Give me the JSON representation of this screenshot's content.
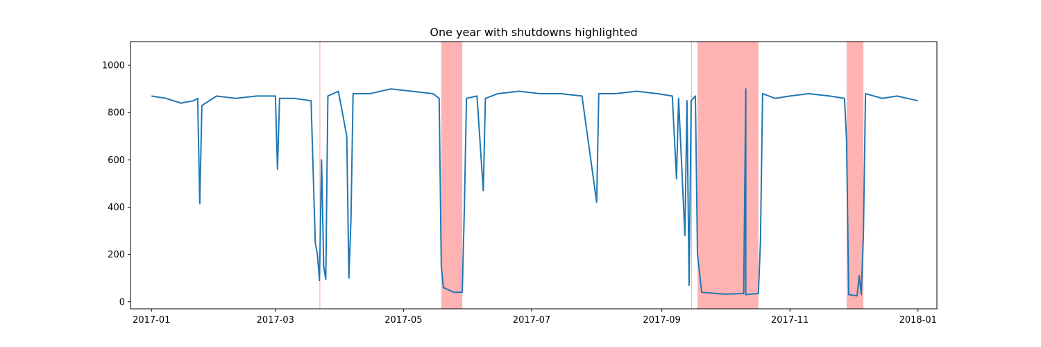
{
  "chart_data": {
    "type": "line",
    "title": "One year with shutdowns highlighted",
    "xlabel": "",
    "ylabel": "",
    "x_range": [
      "2016-12-22",
      "2018-01-10"
    ],
    "ylim": [
      -30,
      1100
    ],
    "grid": false,
    "legend": "none",
    "x_ticks": [
      {
        "date": "2017-01-01",
        "label": "2017-01"
      },
      {
        "date": "2017-03-01",
        "label": "2017-03"
      },
      {
        "date": "2017-05-01",
        "label": "2017-05"
      },
      {
        "date": "2017-07-01",
        "label": "2017-07"
      },
      {
        "date": "2017-09-01",
        "label": "2017-09"
      },
      {
        "date": "2017-11-01",
        "label": "2017-11"
      },
      {
        "date": "2018-01-01",
        "label": "2018-01"
      }
    ],
    "y_ticks": [
      0,
      200,
      400,
      600,
      800,
      1000
    ],
    "colors": {
      "line": "#1f77b4",
      "shutdown": "#ff0000",
      "shutdown_opacity": 0.3
    },
    "shutdowns": [
      {
        "start": "2017-03-22",
        "end": "2017-03-22"
      },
      {
        "start": "2017-05-19",
        "end": "2017-05-29"
      },
      {
        "start": "2017-09-15",
        "end": "2017-09-15"
      },
      {
        "start": "2017-09-18",
        "end": "2017-10-11"
      },
      {
        "start": "2017-10-11",
        "end": "2017-10-17"
      },
      {
        "start": "2017-11-28",
        "end": "2017-12-06"
      }
    ],
    "series": [
      {
        "values": [
          [
            "2017-01-01",
            870
          ],
          [
            "2017-01-08",
            860
          ],
          [
            "2017-01-15",
            840
          ],
          [
            "2017-01-21",
            850
          ],
          [
            "2017-01-23",
            860
          ],
          [
            "2017-01-24",
            415
          ],
          [
            "2017-01-25",
            830
          ],
          [
            "2017-02-01",
            870
          ],
          [
            "2017-02-10",
            860
          ],
          [
            "2017-02-20",
            870
          ],
          [
            "2017-03-01",
            870
          ],
          [
            "2017-03-02",
            560
          ],
          [
            "2017-03-03",
            860
          ],
          [
            "2017-03-10",
            860
          ],
          [
            "2017-03-18",
            850
          ],
          [
            "2017-03-20",
            250
          ],
          [
            "2017-03-21",
            200
          ],
          [
            "2017-03-22",
            90
          ],
          [
            "2017-03-23",
            600
          ],
          [
            "2017-03-24",
            150
          ],
          [
            "2017-03-25",
            95
          ],
          [
            "2017-03-26",
            870
          ],
          [
            "2017-03-31",
            890
          ],
          [
            "2017-04-04",
            700
          ],
          [
            "2017-04-05",
            100
          ],
          [
            "2017-04-06",
            350
          ],
          [
            "2017-04-07",
            880
          ],
          [
            "2017-04-15",
            880
          ],
          [
            "2017-04-25",
            900
          ],
          [
            "2017-05-05",
            890
          ],
          [
            "2017-05-15",
            880
          ],
          [
            "2017-05-18",
            860
          ],
          [
            "2017-05-19",
            150
          ],
          [
            "2017-05-20",
            60
          ],
          [
            "2017-05-25",
            40
          ],
          [
            "2017-05-29",
            40
          ],
          [
            "2017-05-30",
            400
          ],
          [
            "2017-05-31",
            860
          ],
          [
            "2017-06-05",
            870
          ],
          [
            "2017-06-08",
            470
          ],
          [
            "2017-06-09",
            860
          ],
          [
            "2017-06-15",
            880
          ],
          [
            "2017-06-25",
            890
          ],
          [
            "2017-07-05",
            880
          ],
          [
            "2017-07-15",
            880
          ],
          [
            "2017-07-25",
            870
          ],
          [
            "2017-08-01",
            420
          ],
          [
            "2017-08-02",
            880
          ],
          [
            "2017-08-10",
            880
          ],
          [
            "2017-08-20",
            890
          ],
          [
            "2017-08-30",
            880
          ],
          [
            "2017-09-06",
            870
          ],
          [
            "2017-09-08",
            520
          ],
          [
            "2017-09-09",
            860
          ],
          [
            "2017-09-12",
            280
          ],
          [
            "2017-09-13",
            850
          ],
          [
            "2017-09-14",
            70
          ],
          [
            "2017-09-15",
            850
          ],
          [
            "2017-09-17",
            870
          ],
          [
            "2017-09-18",
            200
          ],
          [
            "2017-09-20",
            40
          ],
          [
            "2017-10-01",
            32
          ],
          [
            "2017-10-10",
            35
          ],
          [
            "2017-10-11",
            900
          ],
          [
            "2017-10-11",
            30
          ],
          [
            "2017-10-17",
            35
          ],
          [
            "2017-10-18",
            260
          ],
          [
            "2017-10-19",
            880
          ],
          [
            "2017-10-25",
            860
          ],
          [
            "2017-11-01",
            870
          ],
          [
            "2017-11-10",
            880
          ],
          [
            "2017-11-20",
            870
          ],
          [
            "2017-11-27",
            860
          ],
          [
            "2017-11-28",
            680
          ],
          [
            "2017-11-29",
            30
          ],
          [
            "2017-12-03",
            25
          ],
          [
            "2017-12-04",
            110
          ],
          [
            "2017-12-05",
            30
          ],
          [
            "2017-12-06",
            280
          ],
          [
            "2017-12-07",
            880
          ],
          [
            "2017-12-15",
            860
          ],
          [
            "2017-12-22",
            870
          ],
          [
            "2018-01-01",
            850
          ]
        ]
      }
    ]
  }
}
